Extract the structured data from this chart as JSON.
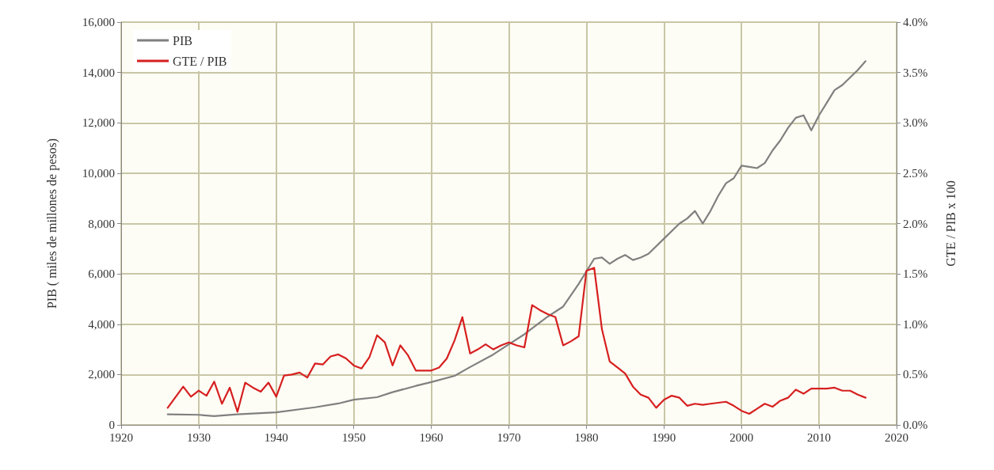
{
  "chart_data": {
    "type": "line",
    "ylabel": "PIB ( miles de millones de pesos)",
    "y2label": "GTE / PIB x 100",
    "xlim": [
      1920,
      2020
    ],
    "xticks": [
      1920,
      1930,
      1940,
      1950,
      1960,
      1970,
      1980,
      1990,
      2000,
      2010,
      2020
    ],
    "ylim": [
      0,
      16000
    ],
    "yticks": [
      0,
      {
        "value": 2000,
        "label": "2,000"
      },
      {
        "value": 4000,
        "label": "4,000"
      },
      {
        "value": 6000,
        "label": "6,000"
      },
      {
        "value": 8000,
        "label": "8,000"
      },
      {
        "value": 10000,
        "label": "10,000"
      },
      {
        "value": 12000,
        "label": "12,000"
      },
      {
        "value": 14000,
        "label": "14,000"
      },
      {
        "value": 16000,
        "label": "16,000"
      }
    ],
    "y2lim": [
      0,
      4
    ],
    "y2ticks": [
      {
        "value": 0,
        "label": "0.0%"
      },
      {
        "value": 0.5,
        "label": "0.5%"
      },
      {
        "value": 1,
        "label": "1.0%"
      },
      {
        "value": 1.5,
        "label": "1.5%"
      },
      {
        "value": 2,
        "label": "2.0%"
      },
      {
        "value": 2.5,
        "label": "2.5%"
      },
      {
        "value": 3,
        "label": "3.0%"
      },
      {
        "value": 3.5,
        "label": "3.5%"
      },
      {
        "value": 4,
        "label": "4.0%"
      }
    ],
    "grid": true,
    "legend": "top left",
    "marker": "none",
    "line_style": "solid",
    "series": [
      {
        "name": "PIB",
        "color": "#808080",
        "x": [
          1926,
          1930,
          1932,
          1935,
          1940,
          1945,
          1948,
          1950,
          1953,
          1955,
          1958,
          1960,
          1963,
          1965,
          1968,
          1970,
          1972,
          1975,
          1977,
          1979,
          1981,
          1982,
          1983,
          1984,
          1985,
          1986,
          1987,
          1988,
          1990,
          1992,
          1993,
          1994,
          1995,
          1996,
          1997,
          1998,
          1999,
          2000,
          2001,
          2002,
          2003,
          2004,
          2005,
          2006,
          2007,
          2008,
          2009,
          2010,
          2011,
          2012,
          2013,
          2014,
          2015,
          2016
        ],
        "values": [
          420,
          400,
          350,
          420,
          500,
          700,
          850,
          1000,
          1100,
          1300,
          1550,
          1700,
          1950,
          2300,
          2800,
          3200,
          3600,
          4300,
          4700,
          5600,
          6600,
          6650,
          6400,
          6600,
          6750,
          6550,
          6650,
          6800,
          7400,
          8000,
          8200,
          8500,
          8000,
          8500,
          9100,
          9600,
          9800,
          10300,
          10250,
          10200,
          10400,
          10900,
          11300,
          11800,
          12200,
          12300,
          11700,
          12300,
          12800,
          13300,
          13500,
          13800,
          14100,
          14450
        ]
      },
      {
        "name": "GTE / PIB",
        "color": "#d62020",
        "axis": "y2",
        "x": [
          1926,
          1928,
          1929,
          1930,
          1931,
          1932,
          1933,
          1934,
          1935,
          1936,
          1937,
          1938,
          1939,
          1940,
          1941,
          1942,
          1943,
          1944,
          1945,
          1946,
          1947,
          1948,
          1949,
          1950,
          1951,
          1952,
          1953,
          1954,
          1955,
          1956,
          1957,
          1958,
          1959,
          1960,
          1961,
          1962,
          1963,
          1964,
          1965,
          1966,
          1967,
          1968,
          1969,
          1970,
          1971,
          1972,
          1973,
          1974,
          1975,
          1976,
          1977,
          1978,
          1979,
          1980,
          1981,
          1982,
          1983,
          1984,
          1985,
          1986,
          1987,
          1988,
          1989,
          1990,
          1991,
          1992,
          1993,
          1994,
          1995,
          1996,
          1997,
          1998,
          1999,
          2000,
          2001,
          2002,
          2003,
          2004,
          2005,
          2006,
          2007,
          2008,
          2009,
          2010,
          2011,
          2012,
          2013,
          2014,
          2015,
          2016
        ],
        "values": [
          0.17,
          0.38,
          0.28,
          0.34,
          0.29,
          0.43,
          0.21,
          0.37,
          0.13,
          0.42,
          0.37,
          0.33,
          0.42,
          0.28,
          0.49,
          0.5,
          0.52,
          0.47,
          0.61,
          0.6,
          0.68,
          0.7,
          0.66,
          0.59,
          0.56,
          0.67,
          0.89,
          0.82,
          0.59,
          0.79,
          0.69,
          0.54,
          0.54,
          0.54,
          0.57,
          0.66,
          0.84,
          1.07,
          0.71,
          0.75,
          0.8,
          0.75,
          0.79,
          0.82,
          0.79,
          0.77,
          1.19,
          1.14,
          1.1,
          1.07,
          0.79,
          0.83,
          0.88,
          1.53,
          1.56,
          0.95,
          0.63,
          0.57,
          0.51,
          0.38,
          0.3,
          0.27,
          0.17,
          0.25,
          0.29,
          0.27,
          0.19,
          0.21,
          0.2,
          0.21,
          0.22,
          0.23,
          0.19,
          0.14,
          0.11,
          0.16,
          0.21,
          0.18,
          0.24,
          0.27,
          0.35,
          0.31,
          0.36,
          0.36,
          0.36,
          0.37,
          0.34,
          0.34,
          0.3,
          0.27
        ]
      }
    ]
  }
}
